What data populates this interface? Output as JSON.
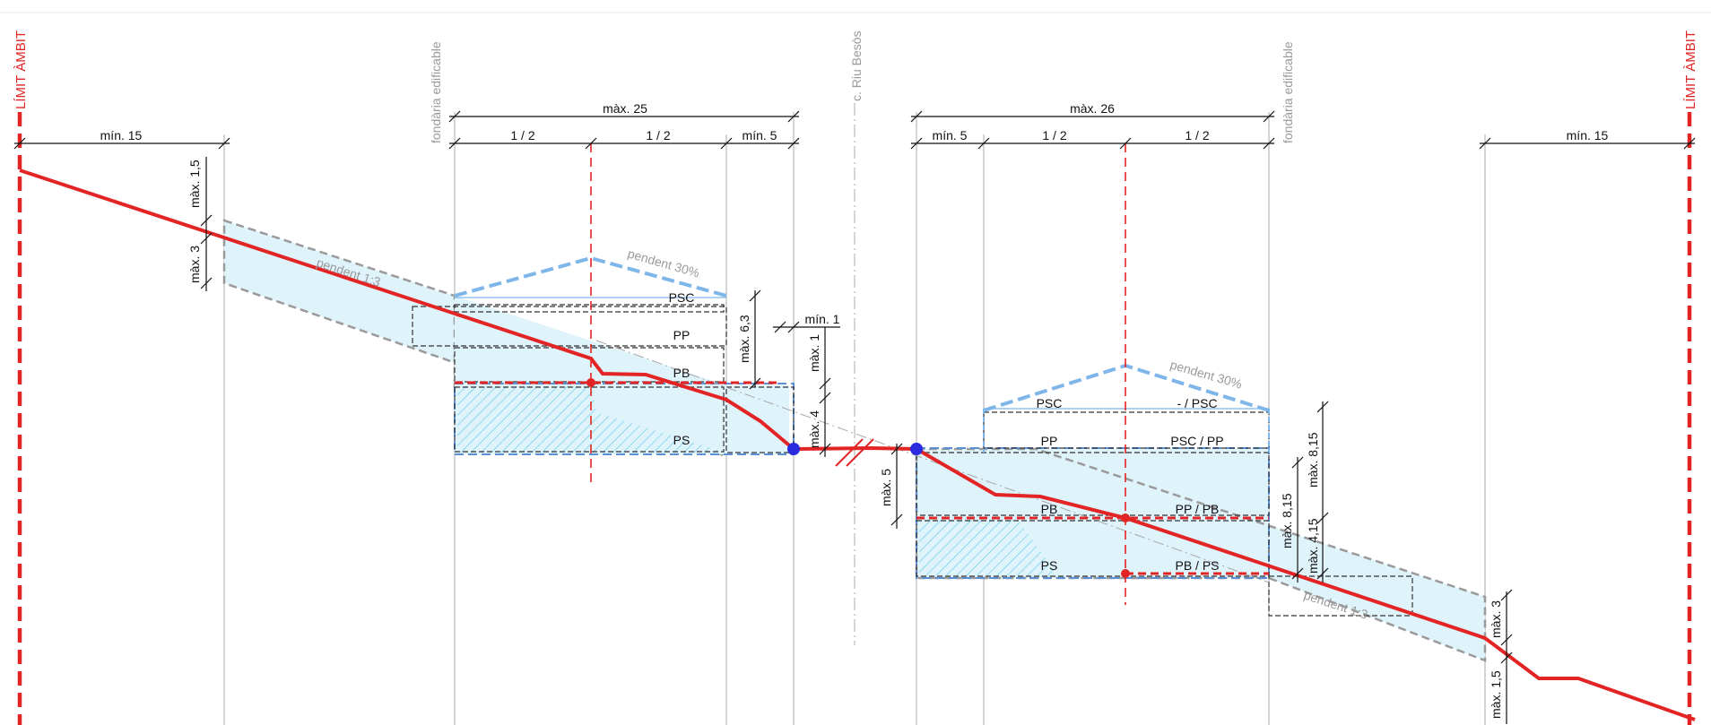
{
  "colors": {
    "ground_line": "#e32424",
    "limit_line": "#e32424",
    "envelope_fill": "#dff3fb",
    "envelope_border": "#9a9a9a",
    "roof_line": "#7fb6ea",
    "hatch": "#4fc1e6",
    "reference_points": "#2b2be0",
    "dimension_lines": "#111111"
  },
  "labels": {
    "limit_left": "LÍMIT ÀMBIT",
    "limit_right": "LÍMIT ÀMBIT",
    "fondaria_left": "fondària edificable",
    "fondaria_right": "fondària edificable",
    "street": "c. Riu Besòs",
    "pendent_1_3_left": "pendent 1:3",
    "pendent_1_3_right": "pendent 1:3",
    "pendent_30_left": "pendent 30%",
    "pendent_30_right": "pendent 30%"
  },
  "dimensions": {
    "left_setback": "mín. 15",
    "left_max_1_5": "màx. 1,5",
    "left_max_3": "màx. 3",
    "left_total": "màx. 25",
    "left_half_1": "1 / 2",
    "left_half_2": "1 / 2",
    "left_min_5": "mín. 5",
    "left_max_6_3": "màx. 6,3",
    "min_1": "mín. 1",
    "max_1": "màx. 1",
    "max_4": "màx. 4",
    "max_5": "màx. 5",
    "right_total": "màx. 26",
    "right_min_5": "mín. 5",
    "right_half_1": "1 / 2",
    "right_half_2": "1 / 2",
    "right_max_8_15_a": "màx. 8,15",
    "right_max_8_15_b": "màx. 8,15",
    "right_max_4_15": "màx. 4,15",
    "right_setback": "mín. 15",
    "right_max_3": "màx. 3",
    "right_max_1_5": "màx. 1,5"
  },
  "levels": {
    "left_psc": "PSC",
    "left_pp": "PP",
    "left_pb": "PB",
    "left_ps": "PS",
    "right_psc": "PSC",
    "right_psc_alt": "- / PSC",
    "right_pp": "PP",
    "right_pp_alt": "PSC / PP",
    "right_pb": "PB",
    "right_pb_alt": "PP / PB",
    "right_ps": "PS",
    "right_ps_alt": "PB / PS"
  }
}
